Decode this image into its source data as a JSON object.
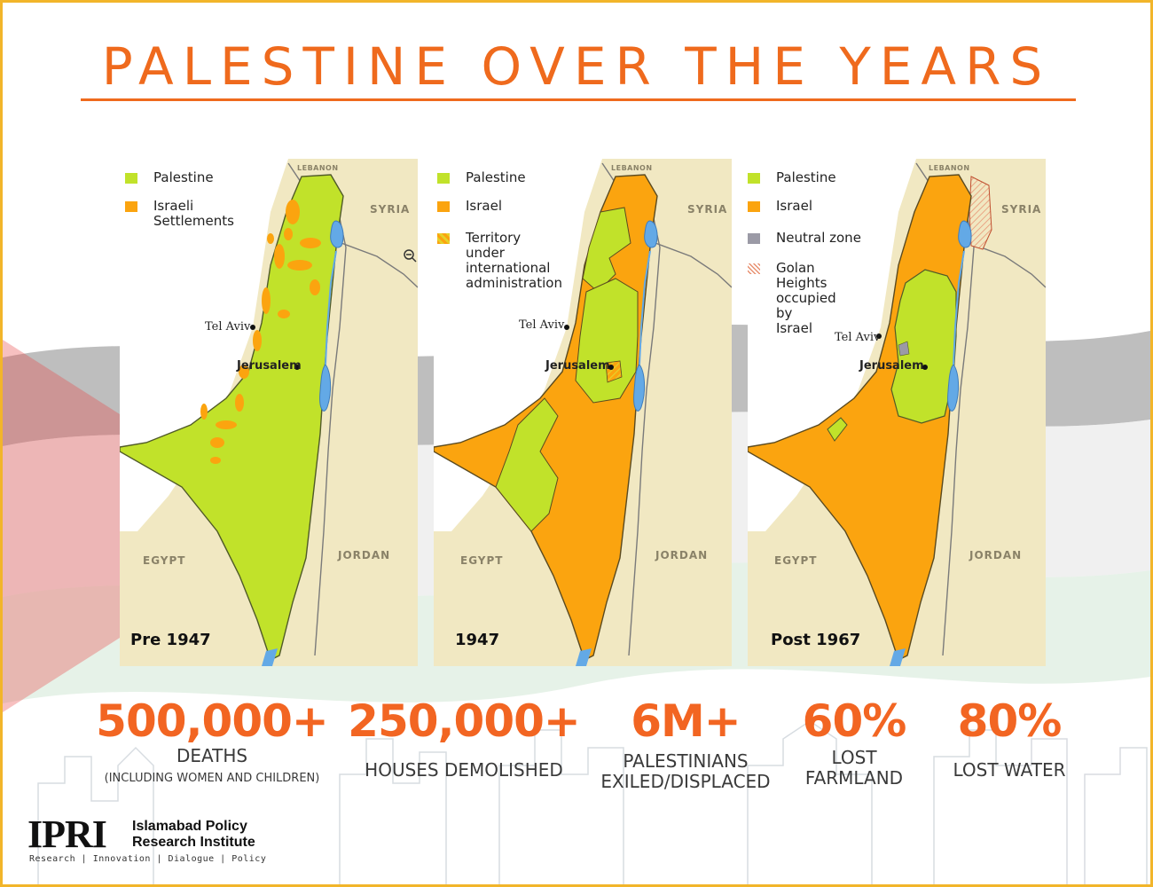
{
  "title": "PALESTINE OVER THE YEARS",
  "colors": {
    "palestine": "#c1e22a",
    "israel": "#fba40f",
    "neutral": "#9b9aa6",
    "land": "#f1e8c2",
    "water": "#63a9e6",
    "accent": "#ef6a1d",
    "frame": "#f2b52a"
  },
  "maps": [
    {
      "era": "Pre 1947",
      "legend": [
        {
          "label": "Palestine",
          "color": "#c1e22a"
        },
        {
          "label": "Israeli\nSettlements",
          "color": "#fba40f"
        }
      ],
      "countries": {
        "lebanon": "LEBANON",
        "syria": "SYRIA",
        "egypt": "EGYPT",
        "jordan": "JORDAN"
      },
      "cities": {
        "tel_aviv": "Tel Aviv",
        "jerusalem": "Jerusalem"
      },
      "icon": "zoom-out-icon"
    },
    {
      "era": "1947",
      "legend": [
        {
          "label": "Palestine",
          "color": "#c1e22a"
        },
        {
          "label": "Israel",
          "color": "#fba40f"
        },
        {
          "label": "Territory under\ninternational\nadministration",
          "color": "hatched-yellow"
        }
      ],
      "countries": {
        "lebanon": "LEBANON",
        "syria": "SYRIA",
        "egypt": "EGYPT",
        "jordan": "JORDAN"
      },
      "cities": {
        "tel_aviv": "Tel Aviv",
        "jerusalem": "Jerusalem"
      }
    },
    {
      "era": "Post 1967",
      "legend": [
        {
          "label": "Palestine",
          "color": "#c1e22a"
        },
        {
          "label": "Israel",
          "color": "#fba40f"
        },
        {
          "label": "Neutral zone",
          "color": "#9b9aa6"
        },
        {
          "label": "Golan Heights\noccupied by\nIsrael",
          "color": "hatched-orange"
        }
      ],
      "countries": {
        "lebanon": "LEBANON",
        "syria": "SYRIA",
        "egypt": "EGYPT",
        "jordan": "JORDAN"
      },
      "cities": {
        "tel_aviv": "Tel Aviv",
        "jerusalem": "Jerusalem"
      }
    }
  ],
  "stats": [
    {
      "value": "500,000+",
      "label": "DEATHS",
      "note": "(INCLUDING WOMEN AND CHILDREN)"
    },
    {
      "value": "250,000+",
      "label": "HOUSES DEMOLISHED"
    },
    {
      "value": "6M+",
      "label": "PALESTINIANS\nEXILED/DISPLACED"
    },
    {
      "value": "60%",
      "label": "LOST\nFARMLAND"
    },
    {
      "value": "80%",
      "label": "LOST WATER"
    }
  ],
  "logo": {
    "mark": "IPRI",
    "name": "Islamabad Policy\nResearch Institute",
    "tagline": "Research | Innovation | Dialogue | Policy"
  }
}
